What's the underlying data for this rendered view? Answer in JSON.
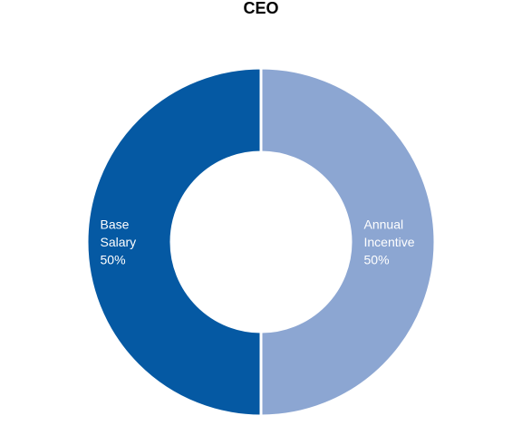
{
  "chart_data": {
    "type": "pie",
    "title": "CEO",
    "slices": [
      {
        "label_lines": [
          "Annual",
          "Incentive",
          "50%"
        ],
        "value": 50,
        "color": "#8ca6d2"
      },
      {
        "label_lines": [
          "Base",
          "Salary",
          "50%"
        ],
        "value": 50,
        "color": "#0559a3"
      }
    ],
    "donut": true
  }
}
